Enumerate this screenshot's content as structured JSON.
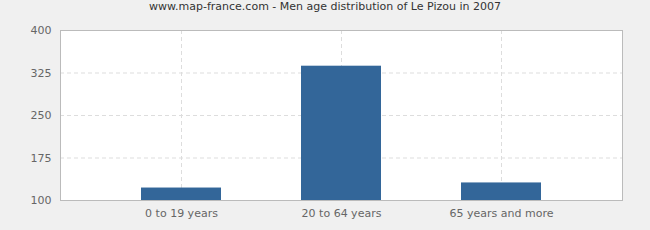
{
  "chart_data": {
    "type": "bar",
    "title": "www.map-france.com - Men age distribution of Le Pizou in 2007",
    "categories": [
      "0 to 19 years",
      "20 to 64 years",
      "65 years and more"
    ],
    "values": [
      122,
      337,
      131
    ],
    "color": "#336699",
    "ylim": [
      100,
      400
    ],
    "yticks": [
      100,
      175,
      250,
      325,
      400
    ],
    "grid": true
  }
}
